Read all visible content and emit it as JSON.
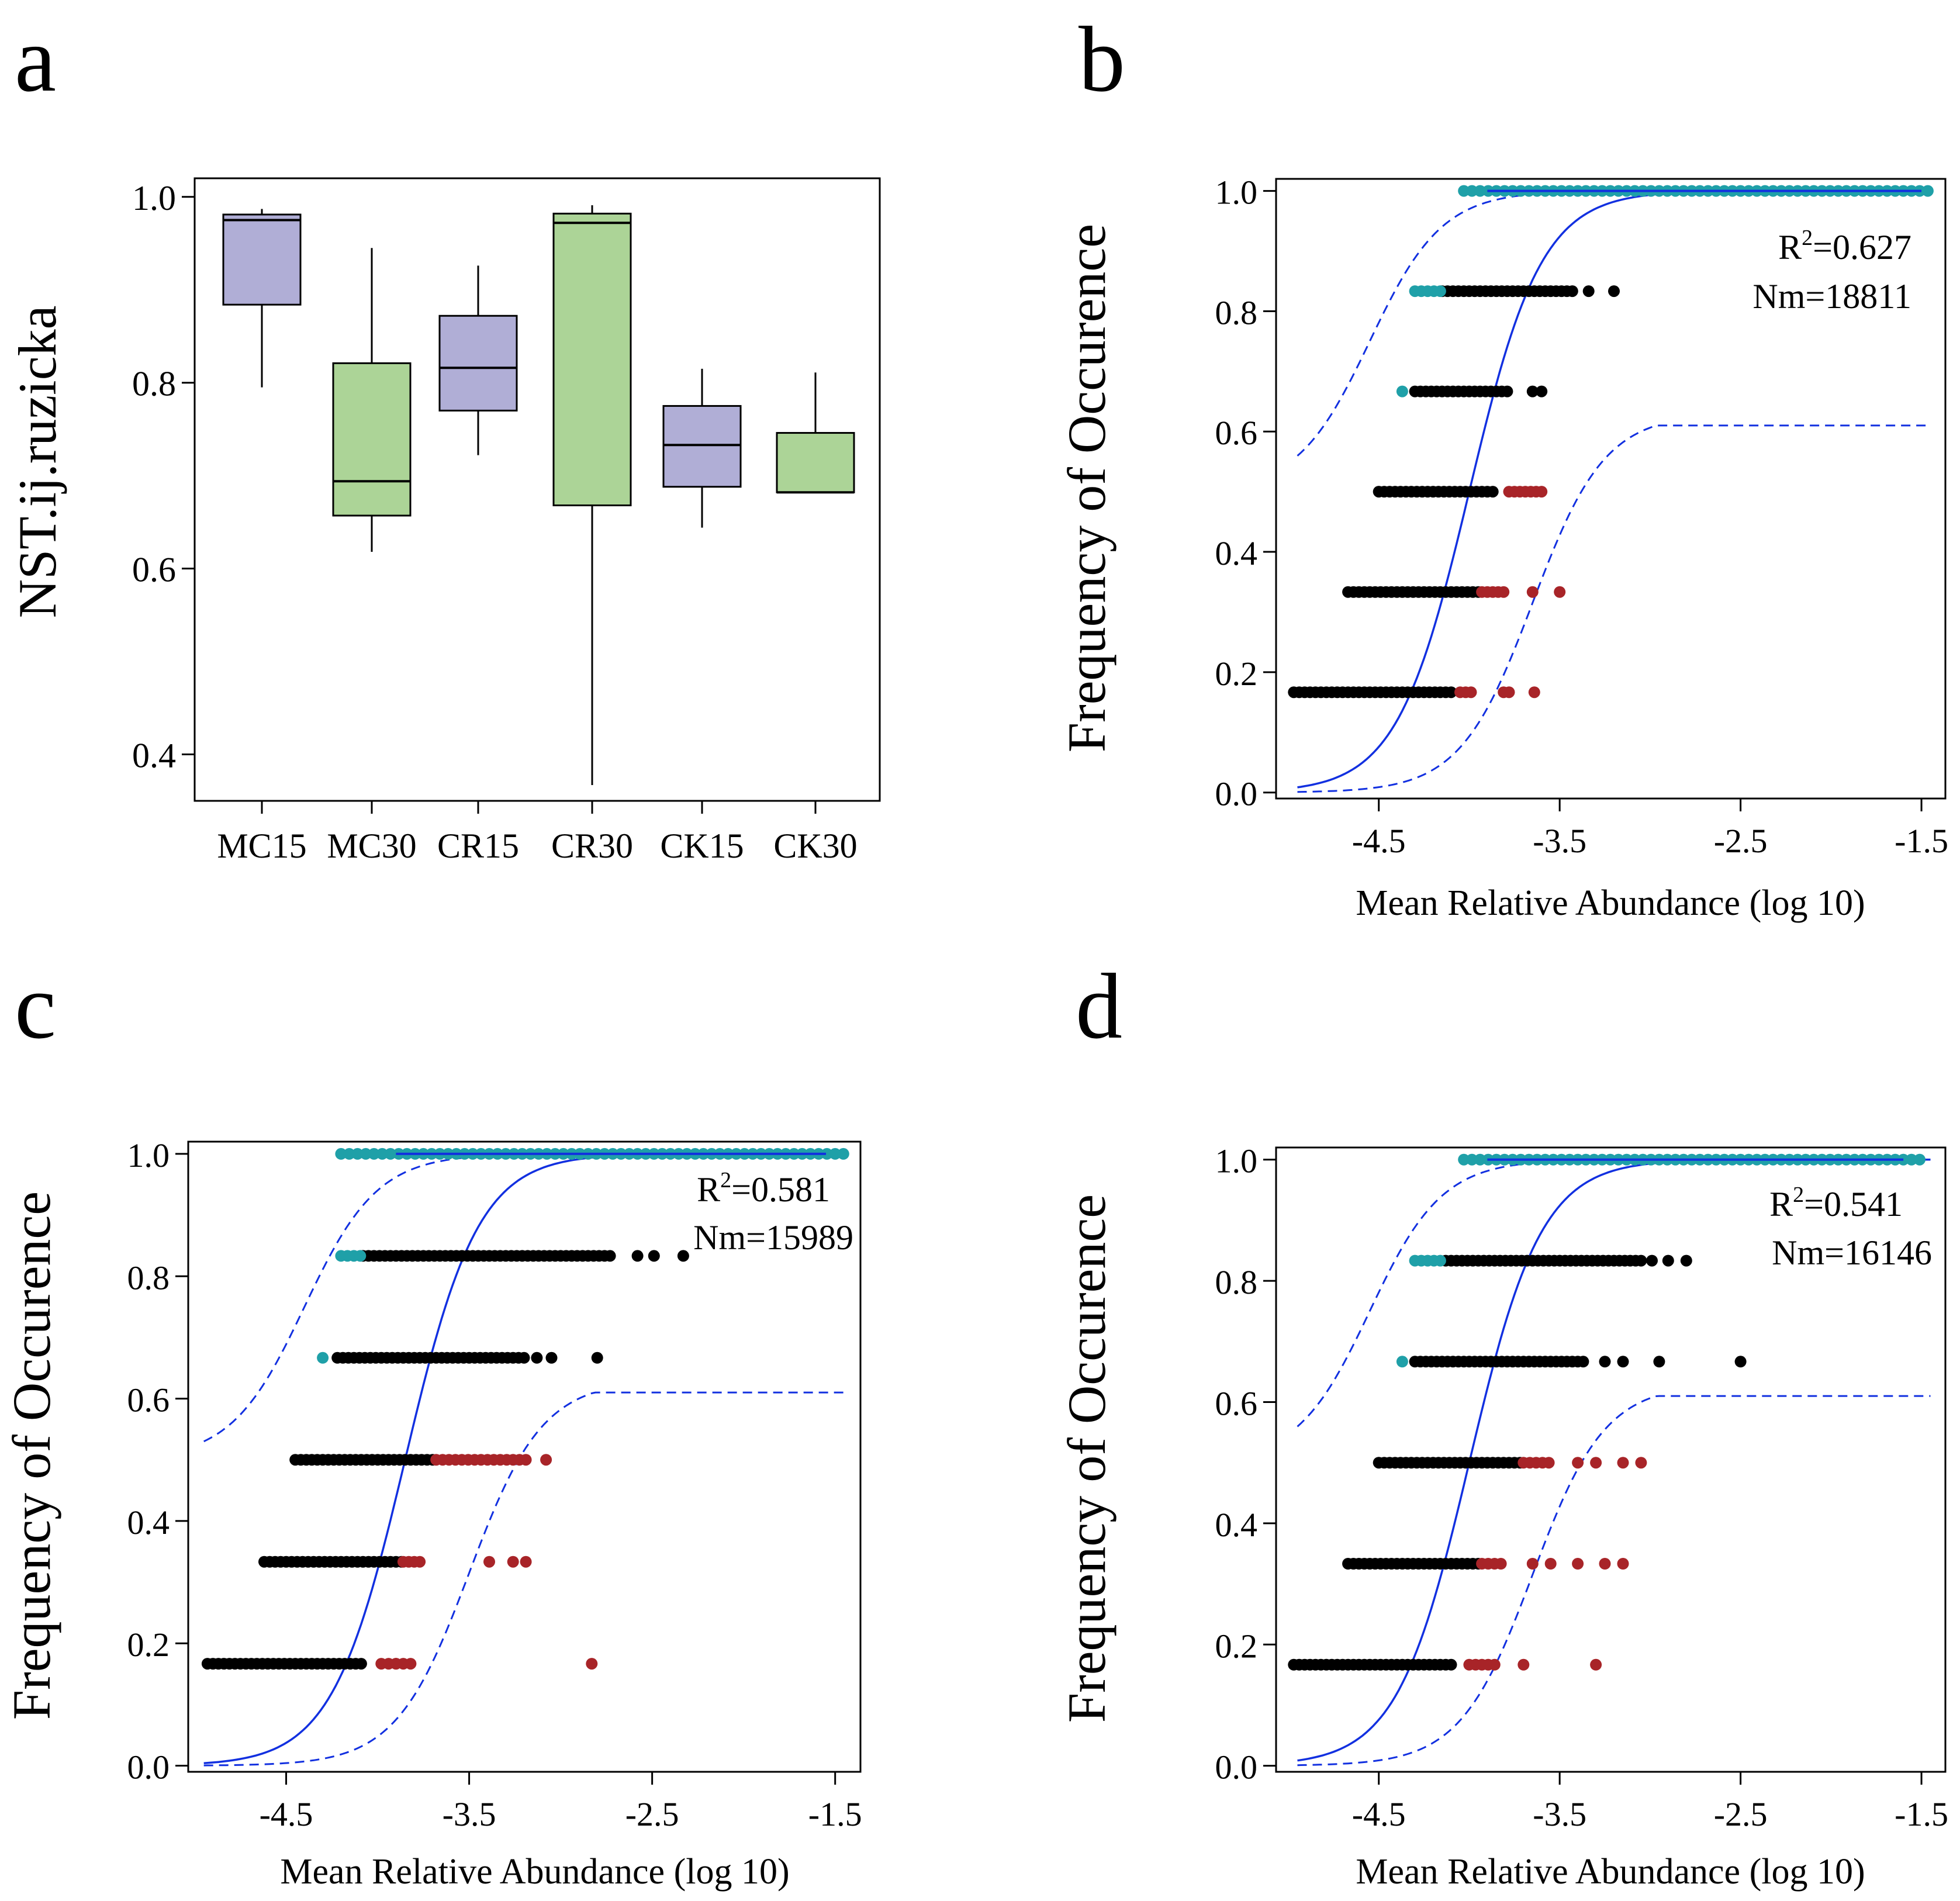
{
  "colors": {
    "box_purple": "#b0aed6",
    "box_green": "#acd497",
    "cyan": "#1fa0a8",
    "black": "#000000",
    "red": "#a82428",
    "fit_line": "#1230e0"
  },
  "chart_data": [
    {
      "panel": "a",
      "type": "box",
      "title": "",
      "xlabel": "",
      "ylabel": "NST.ij.ruzicka",
      "ylim": [
        0.35,
        1.02
      ],
      "yticks": [
        "0.4",
        "0.6",
        "0.8",
        "1.0"
      ],
      "categories": [
        "MC15",
        "MC30",
        "CR15",
        "CR30",
        "CK15",
        "CK30"
      ],
      "boxes": [
        {
          "name": "MC15",
          "min": 0.795,
          "q1": 0.884,
          "median": 0.975,
          "q3": 0.981,
          "max": 0.987,
          "color": "purple"
        },
        {
          "name": "MC30",
          "min": 0.618,
          "q1": 0.657,
          "median": 0.694,
          "q3": 0.821,
          "max": 0.945,
          "color": "green"
        },
        {
          "name": "CR15",
          "min": 0.722,
          "q1": 0.77,
          "median": 0.816,
          "q3": 0.872,
          "max": 0.926,
          "color": "purple"
        },
        {
          "name": "CR30",
          "min": 0.367,
          "q1": 0.668,
          "median": 0.972,
          "q3": 0.982,
          "max": 0.991,
          "color": "green"
        },
        {
          "name": "CK15",
          "min": 0.644,
          "q1": 0.688,
          "median": 0.733,
          "q3": 0.775,
          "max": 0.815,
          "color": "purple"
        },
        {
          "name": "CK30",
          "min": 0.682,
          "q1": 0.682,
          "median": 0.682,
          "q3": 0.746,
          "max": 0.811,
          "color": "green"
        }
      ]
    },
    {
      "panel": "b",
      "type": "scatter",
      "xlabel": "Mean Relative Abundance (log 10)",
      "ylabel": "Frequency of Occurence",
      "xlim": [
        -5.0,
        -1.4
      ],
      "ylim": [
        -0.01,
        1.02
      ],
      "xticks": [
        "-4.5",
        "-3.5",
        "-2.5",
        "-1.5"
      ],
      "yticks": [
        "0.0",
        "0.2",
        "0.4",
        "0.6",
        "0.8",
        "1.0"
      ],
      "annotation": {
        "r2_prefix": "R",
        "r2_sup": "2",
        "r2_value": "=0.627",
        "nm": "Nm=18811"
      },
      "fit": {
        "x0": -4.0,
        "k": 5.0,
        "lower_cap": 0.61
      },
      "rows": [
        {
          "y": 1.0,
          "cyan": [
            -4.03,
            -1.46,
            0.045
          ],
          "blue_end": -1.5
        },
        {
          "y": 0.8333,
          "cyan": [
            -4.3,
            -4.15,
            0.035
          ],
          "black": [
            -4.15,
            -3.41,
            0.03
          ],
          "extra_black": [
            -3.34,
            -3.2
          ]
        },
        {
          "y": 0.6667,
          "cyan": [
            -4.37,
            -4.37,
            0.03
          ],
          "black": [
            -4.3,
            -3.77,
            0.03
          ],
          "extra_black": [
            -3.65,
            -3.6
          ]
        },
        {
          "y": 0.5,
          "black": [
            -4.5,
            -3.85,
            0.03
          ],
          "red": [
            -3.78,
            -3.6,
            0.03
          ],
          "extra_red": []
        },
        {
          "y": 0.3333,
          "black": [
            -4.67,
            -3.93,
            0.03
          ],
          "red": [
            -3.93,
            -3.8,
            0.03
          ],
          "extra_red": [
            -3.65,
            -3.5
          ]
        },
        {
          "y": 0.1667,
          "black": [
            -4.97,
            -4.09,
            0.03
          ],
          "red": [
            -4.05,
            -3.98,
            0.03
          ],
          "extra_red": [
            -3.81,
            -3.78,
            -3.64
          ]
        }
      ]
    },
    {
      "panel": "c",
      "type": "scatter",
      "xlabel": "Mean Relative Abundance (log 10)",
      "ylabel": "Frequency of Occurence",
      "xlim": [
        -5.0,
        -1.4
      ],
      "ylim": [
        -0.01,
        1.02
      ],
      "xticks": [
        "-4.5",
        "-3.5",
        "-2.5",
        "-1.5"
      ],
      "yticks": [
        "0.0",
        "0.2",
        "0.4",
        "0.6",
        "0.8",
        "1.0"
      ],
      "annotation": {
        "r2_prefix": "R",
        "r2_sup": "2",
        "r2_value": "=0.581",
        "nm": "Nm=15989"
      },
      "fit": {
        "x0": -3.85,
        "k": 5.0,
        "lower_cap": 0.61
      },
      "rows": [
        {
          "y": 1.0,
          "cyan": [
            -4.2,
            -1.45,
            0.045
          ],
          "blue_end": -1.55
        },
        {
          "y": 0.8333,
          "cyan": [
            -4.2,
            -4.08,
            0.035
          ],
          "black": [
            -4.08,
            -2.72,
            0.03
          ],
          "extra_black": [
            -2.58,
            -2.49,
            -2.33
          ]
        },
        {
          "y": 0.6667,
          "cyan": [
            -4.3,
            -4.3,
            0.03
          ],
          "black": [
            -4.22,
            -3.2,
            0.03
          ],
          "extra_black": [
            -3.13,
            -3.05,
            -2.8
          ]
        },
        {
          "y": 0.5,
          "black": [
            -4.45,
            -3.7,
            0.03
          ],
          "red": [
            -3.68,
            -3.19,
            0.035
          ],
          "extra_red": [
            -3.08
          ]
        },
        {
          "y": 0.3333,
          "black": [
            -4.62,
            -3.86,
            0.03
          ],
          "red": [
            -3.86,
            -3.75,
            0.03
          ],
          "extra_red": [
            -3.39,
            -3.26,
            -3.19
          ]
        },
        {
          "y": 0.1667,
          "black": [
            -4.93,
            -4.08,
            0.03
          ],
          "red": [
            -3.98,
            -3.79,
            0.04
          ],
          "extra_red": [
            -3.9,
            -2.83
          ]
        }
      ]
    },
    {
      "panel": "d",
      "type": "scatter",
      "xlabel": "Mean Relative Abundance (log 10)",
      "ylabel": "Frequency of Occurence",
      "xlim": [
        -5.0,
        -1.4
      ],
      "ylim": [
        -0.01,
        1.02
      ],
      "xticks": [
        "-4.5",
        "-3.5",
        "-2.5",
        "-1.5"
      ],
      "yticks": [
        "0.0",
        "0.2",
        "0.4",
        "0.6",
        "0.8",
        "1.0"
      ],
      "annotation": {
        "r2_prefix": "R",
        "r2_sup": "2",
        "r2_value": "=0.541",
        "nm": "Nm=16146"
      },
      "fit": {
        "x0": -4.0,
        "k": 5.0,
        "lower_cap": 0.61
      },
      "rows": [
        {
          "y": 1.0,
          "cyan": [
            -4.03,
            -1.5,
            0.045
          ],
          "blue_end": -1.6
        },
        {
          "y": 0.8333,
          "cyan": [
            -4.3,
            -4.13,
            0.035
          ],
          "black": [
            -4.13,
            -3.05,
            0.03
          ],
          "extra_black": [
            -2.99,
            -2.9,
            -2.8
          ]
        },
        {
          "y": 0.6667,
          "cyan": [
            -4.37,
            -4.37,
            0.03
          ],
          "black": [
            -4.3,
            -3.35,
            0.03
          ],
          "extra_black": [
            -3.25,
            -3.15,
            -2.95,
            -2.5
          ]
        },
        {
          "y": 0.5,
          "black": [
            -4.5,
            -3.7,
            0.03
          ],
          "red": [
            -3.7,
            -3.55,
            0.035
          ],
          "extra_red": [
            -3.4,
            -3.3,
            -3.15,
            -3.05
          ]
        },
        {
          "y": 0.3333,
          "black": [
            -4.67,
            -3.93,
            0.03
          ],
          "red": [
            -3.93,
            -3.8,
            0.035
          ],
          "extra_red": [
            -3.65,
            -3.55,
            -3.4,
            -3.25,
            -3.15
          ]
        },
        {
          "y": 0.1667,
          "black": [
            -4.97,
            -4.09,
            0.03
          ],
          "red": [
            -4.0,
            -3.85,
            0.035
          ],
          "extra_red": [
            -3.7,
            -3.3
          ]
        }
      ]
    }
  ],
  "panel_labels": [
    "a",
    "b",
    "c",
    "d"
  ]
}
